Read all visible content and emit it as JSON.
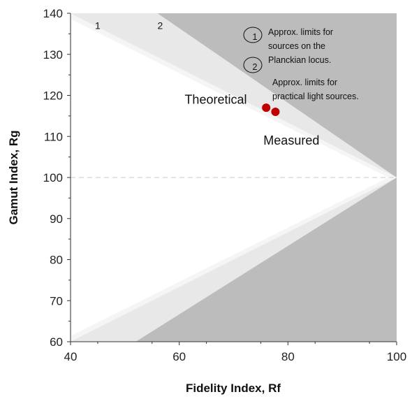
{
  "chart_data": {
    "type": "scatter",
    "xlabel": "Fidelity Index, Rf",
    "ylabel": "Gamut Index, Rg",
    "xlim": [
      40,
      100
    ],
    "ylim": [
      60,
      140
    ],
    "xticks": [
      40,
      60,
      80,
      100
    ],
    "yticks": [
      60,
      70,
      80,
      90,
      100,
      110,
      120,
      130,
      140
    ],
    "grid": false,
    "reference_line": {
      "y": 100,
      "style": "dashed"
    },
    "regions": {
      "limit_1": {
        "label": "1",
        "label_at": [
          45,
          137
        ],
        "upper": [
          [
            40,
            140
          ],
          [
            100,
            100
          ]
        ],
        "lower": [
          [
            40,
            60
          ],
          [
            100,
            100
          ]
        ]
      },
      "limit_2": {
        "label": "2",
        "label_at": [
          56.5,
          137
        ],
        "upper": [
          [
            56,
            140
          ],
          [
            100,
            100
          ]
        ],
        "lower": [
          [
            52,
            60
          ],
          [
            100,
            100
          ]
        ]
      }
    },
    "points": [
      {
        "x": 76,
        "y": 117,
        "color": "#c00000"
      },
      {
        "x": 77.7,
        "y": 116,
        "color": "#c00000"
      }
    ],
    "annotations": [
      {
        "text": "Theoretical",
        "x": 61,
        "y": 119
      },
      {
        "text": "Measured",
        "x": 75.5,
        "y": 109
      }
    ],
    "notes": [
      {
        "marker": "1",
        "lines": [
          "Approx. limits for",
          "sources on the",
          "Planckian locus."
        ]
      },
      {
        "marker": "2",
        "lines": [
          "Approx. limits for",
          "practical light sources."
        ]
      }
    ],
    "colors": {
      "region_1": "#f5f5f5",
      "region_2": "#e8e8e8",
      "outside": "#bcbcbc",
      "reference_line": "#dcdcdc",
      "points": "#c00000"
    }
  }
}
